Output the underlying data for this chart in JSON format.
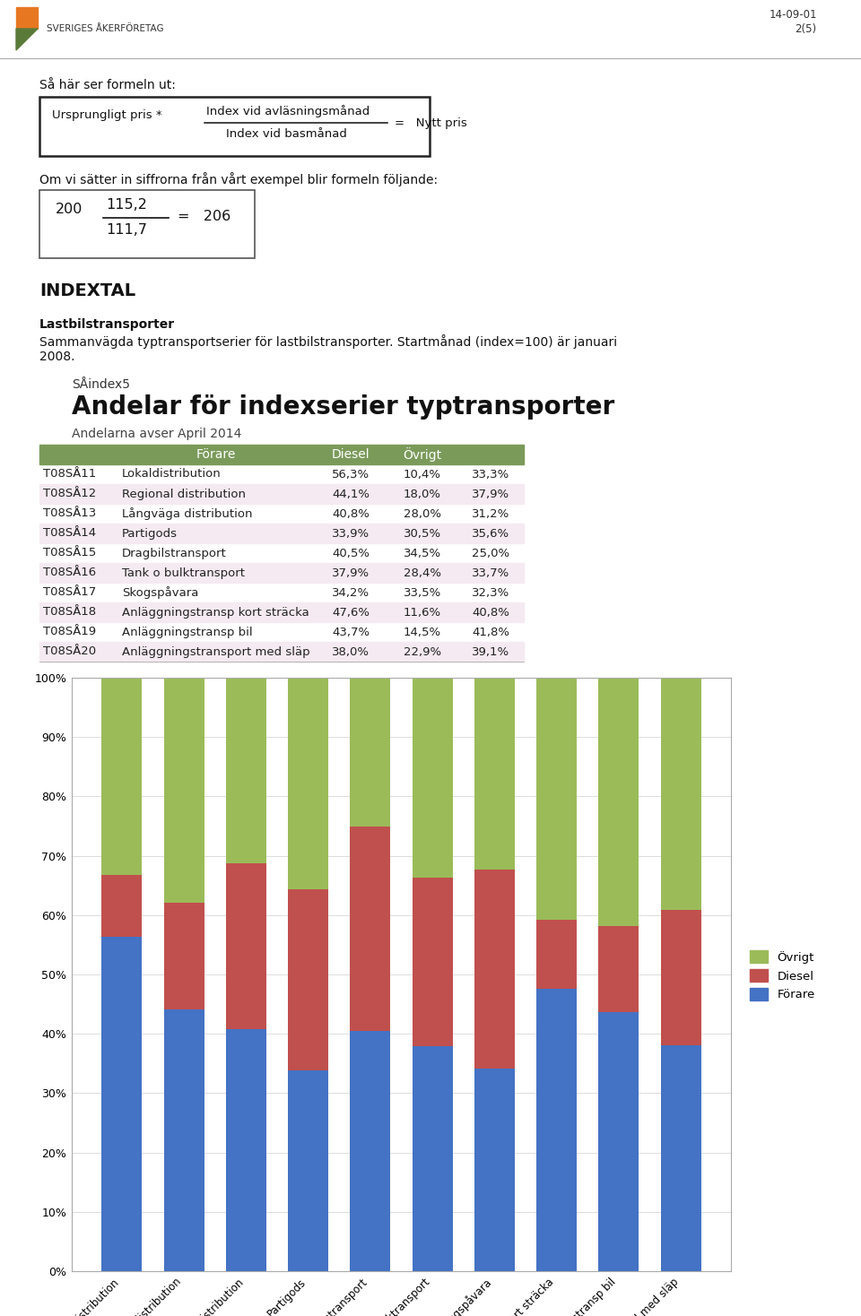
{
  "page_header_date": "14-09-01",
  "page_header_page": "2(5)",
  "logo_text": "SVERIGES ÅKERFÖRETAG",
  "formula_title": "Så här ser formeln ut:",
  "section_title": "INDEXTAL",
  "subsection_bold": "Lastbilstransporter",
  "subsection_text1": "Sammanvägda typtransportserier för lastbilstransporter. Startmånad (index=100) är januari",
  "subsection_text2": "2008.",
  "chart_subtitle": "SÅindex5",
  "chart_title": "Andelar för indexserier typtransporter",
  "chart_subtitle2": "Andelarna avser April 2014",
  "table_headers": [
    "",
    "Förare",
    "Diesel",
    "Övrigt"
  ],
  "table_header_bg": "#7a9a5a",
  "table_header_color": "#ffffff",
  "table_rows": [
    {
      "code": "T08SÅ11",
      "name": "Lokaldistribution",
      "forare": 56.3,
      "diesel": 10.4,
      "ovrigt": 33.3
    },
    {
      "code": "T08SÅ12",
      "name": "Regional distribution",
      "forare": 44.1,
      "diesel": 18.0,
      "ovrigt": 37.9
    },
    {
      "code": "T08SÅ13",
      "name": "Långväga distribution",
      "forare": 40.8,
      "diesel": 28.0,
      "ovrigt": 31.2
    },
    {
      "code": "T08SÅ14",
      "name": "Partigods",
      "forare": 33.9,
      "diesel": 30.5,
      "ovrigt": 35.6
    },
    {
      "code": "T08SÅ15",
      "name": "Dragbilstransport",
      "forare": 40.5,
      "diesel": 34.5,
      "ovrigt": 25.0
    },
    {
      "code": "T08SÅ16",
      "name": "Tank o bulktransport",
      "forare": 37.9,
      "diesel": 28.4,
      "ovrigt": 33.7
    },
    {
      "code": "T08SÅ17",
      "name": "Skogsрåvara",
      "forare": 34.2,
      "diesel": 33.5,
      "ovrigt": 32.3
    },
    {
      "code": "T08SÅ18",
      "name": "Anläggningstransp kort sträcka",
      "forare": 47.6,
      "diesel": 11.6,
      "ovrigt": 40.8
    },
    {
      "code": "T08SÅ19",
      "name": "Anläggningstransp bil",
      "forare": 43.7,
      "diesel": 14.5,
      "ovrigt": 41.8
    },
    {
      "code": "T08SÅ20",
      "name": "Anläggningstransport med släp",
      "forare": 38.0,
      "diesel": 22.9,
      "ovrigt": 39.1
    }
  ],
  "row_alt_bg": "#f5eaf2",
  "bar_color_forare": "#4472c4",
  "bar_color_diesel": "#c0504d",
  "bar_color_ovrigt": "#9bbb59",
  "bar_labels": [
    "Lokaldistribution",
    "Regional distribution",
    "Långväga distribution",
    "Partigods",
    "Dragbilstransport",
    "Tank o bulktransport",
    "Skogsрåvara",
    "Anläggningstransp kort sträcka",
    "Anläggningstransp bil",
    "Anläggningstransp bil med släp"
  ],
  "y_ticks": [
    "0%",
    "10%",
    "20%",
    "30%",
    "40%",
    "50%",
    "60%",
    "70%",
    "80%",
    "90%",
    "100%"
  ],
  "y_tick_vals": [
    0,
    10,
    20,
    30,
    40,
    50,
    60,
    70,
    80,
    90,
    100
  ]
}
